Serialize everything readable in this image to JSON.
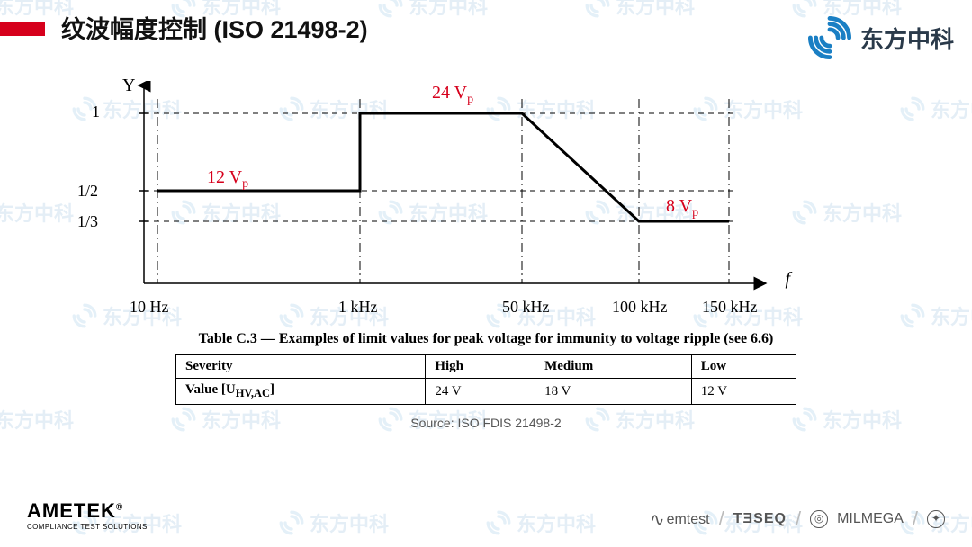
{
  "header": {
    "title": "纹波幅度控制 (ISO 21498-2)",
    "logo_text": "东方中科"
  },
  "chart": {
    "type": "line",
    "y_axis_label": "Y",
    "x_axis_label": "f",
    "y_ticks": [
      {
        "label": "1",
        "value": 1.0
      },
      {
        "label": "1/2",
        "value": 0.5
      },
      {
        "label": "1/3",
        "value": 0.333
      }
    ],
    "x_ticks": [
      {
        "label": "10 Hz",
        "pos": 0.07
      },
      {
        "label": "1 kHz",
        "pos": 0.37
      },
      {
        "label": "50 kHz",
        "pos": 0.62
      },
      {
        "label": "100 kHz",
        "pos": 0.8
      },
      {
        "label": "150 kHz",
        "pos": 0.93
      }
    ],
    "annotations": {
      "a12": "12 V",
      "a24": "24 V",
      "a8": "8 V",
      "sub": "p"
    },
    "colors": {
      "axis": "#000000",
      "curve": "#000000",
      "grid": "#000000",
      "annot": "#d6001c"
    },
    "curve": [
      {
        "x": 0.07,
        "y": 0.5
      },
      {
        "x": 0.37,
        "y": 0.5
      },
      {
        "x": 0.37,
        "y": 1.0
      },
      {
        "x": 0.62,
        "y": 1.0
      },
      {
        "x": 0.8,
        "y": 0.333
      },
      {
        "x": 0.93,
        "y": 0.333
      }
    ]
  },
  "table": {
    "caption": "Table C.3 — Examples of limit values for peak voltage for immunity to voltage ripple (see 6.6)",
    "rows": [
      [
        "Severity",
        "High",
        "Medium",
        "Low"
      ],
      [
        "Value [U_HV,AC]",
        "24 V",
        "18 V",
        "12 V"
      ]
    ],
    "value_label_html": "Value [U<sub>HV,AC</sub>]"
  },
  "source": "Source: ISO FDIS 21498-2",
  "footer": {
    "ametek_big": "AMETEK",
    "ametek_small": "COMPLIANCE TEST SOLUTIONS",
    "brands": [
      "emtest",
      "TƎSEQ",
      "MILMEGA"
    ]
  },
  "watermark_text": "东方中科"
}
